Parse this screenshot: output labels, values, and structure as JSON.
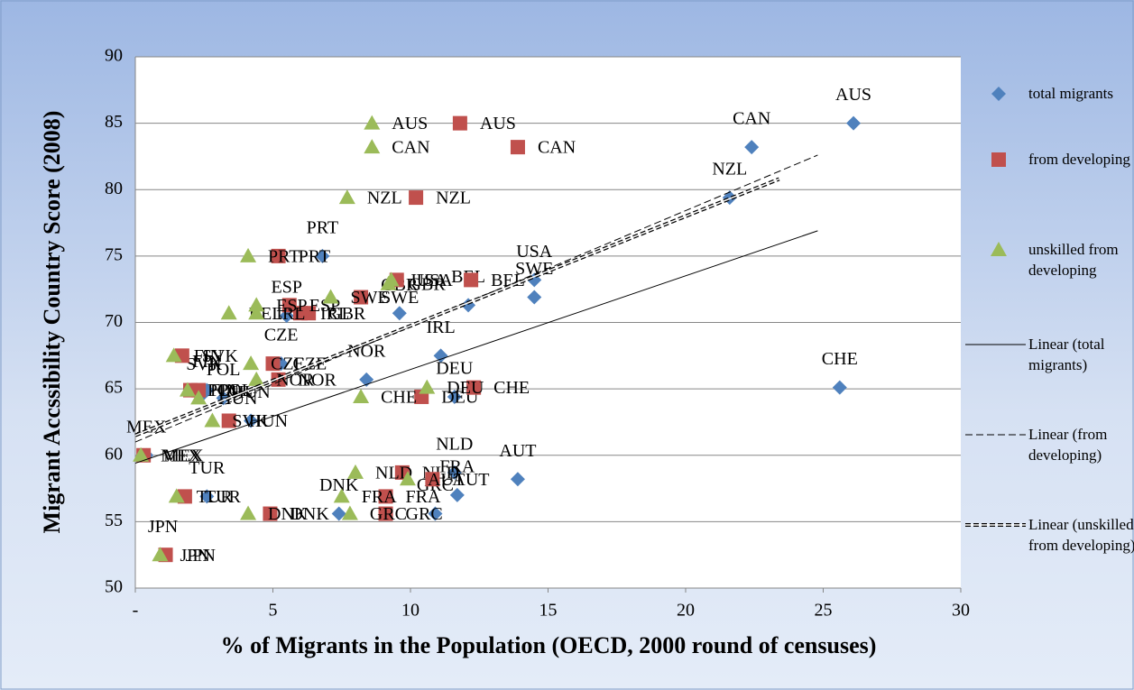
{
  "chart_data": {
    "type": "scatter",
    "xlabel": "% of Migrants in the Population (OECD, 2000 round of censuses)",
    "ylabel": "Migrant Accssibility Country Score (2008)",
    "xlim": [
      0,
      30
    ],
    "ylim": [
      50,
      90
    ],
    "xticks": [
      {
        "value": 0,
        "label": "-"
      },
      5,
      10,
      15,
      20,
      25,
      30
    ],
    "yticks": [
      50,
      55,
      60,
      65,
      70,
      75,
      80,
      85,
      90
    ],
    "grid": true,
    "legend": "right",
    "series": [
      {
        "name": "total migrants",
        "color": "#4f81bd",
        "marker": "diamond",
        "labels": [
          "AUS",
          "CAN",
          "NZL",
          "PRT",
          "USA",
          "SWE",
          "BEL",
          "GBR",
          "IRL",
          "NOR",
          "DEU",
          "CHE",
          "NLD",
          "AUT",
          "FRA",
          "GRC",
          "DNK",
          "ESP",
          "CZE",
          "FIN",
          "POL",
          "SVK",
          "HUN",
          "MEX",
          "TUR",
          "JPN"
        ],
        "x": [
          26.1,
          22.4,
          21.6,
          6.8,
          14.5,
          14.5,
          12.1,
          9.6,
          11.1,
          8.4,
          11.6,
          25.6,
          11.6,
          13.9,
          11.7,
          10.9,
          7.4,
          5.5,
          5.3,
          2.6,
          3.2,
          2.5,
          4.2,
          0.4,
          2.6,
          1.0
        ],
        "values": [
          85,
          83.2,
          79.4,
          75,
          73.2,
          71.9,
          71.3,
          70.7,
          67.5,
          65.7,
          64.4,
          65.1,
          58.7,
          58.2,
          57,
          55.6,
          55.6,
          70.5,
          66.9,
          64.9,
          64.3,
          64.7,
          62.6,
          60,
          56.9,
          52.5
        ]
      },
      {
        "name": "from developing",
        "color": "#c0504d",
        "marker": "square",
        "labels": [
          "AUS",
          "CAN",
          "NZL",
          "PRT",
          "USA",
          "SWE",
          "BEL",
          "GBR",
          "IRL",
          "NOR",
          "DEU",
          "CHE",
          "NLD",
          "AUT",
          "FRA",
          "GRC",
          "DNK",
          "ESP",
          "CZE",
          "FIN",
          "POL",
          "SVK",
          "HUN",
          "MEX",
          "TUR",
          "JPN"
        ],
        "x": [
          11.8,
          13.9,
          10.2,
          5.2,
          9.5,
          8.2,
          12.2,
          6.3,
          6.0,
          5.2,
          10.4,
          12.3,
          9.7,
          10.8,
          9.1,
          9.1,
          4.9,
          5.6,
          5.0,
          2.0,
          2.3,
          1.7,
          3.4,
          0.3,
          1.8,
          1.1
        ],
        "values": [
          85,
          83.2,
          79.4,
          75,
          73.2,
          71.9,
          73.2,
          70.7,
          70.7,
          65.7,
          64.4,
          65.1,
          58.7,
          58.2,
          56.9,
          55.6,
          55.6,
          71.3,
          66.9,
          64.9,
          64.9,
          67.5,
          62.6,
          60,
          56.9,
          52.5
        ]
      },
      {
        "name": "unskilled from developing",
        "color": "#9bbb59",
        "marker": "triangle",
        "labels": [
          "AUS",
          "CAN",
          "NZL",
          "PRT",
          "USA",
          "SWE",
          "BEL",
          "GBR",
          "IRL",
          "NOR",
          "DEU",
          "CHE",
          "NLD",
          "AUT",
          "FRA",
          "GRC",
          "DNK",
          "ESP",
          "CZE",
          "FIN",
          "POL",
          "SVK",
          "HUN",
          "MEX",
          "TUR",
          "JPN"
        ],
        "x": [
          8.6,
          8.6,
          7.7,
          4.1,
          9.3,
          7.1,
          3.4,
          9.2,
          4.4,
          4.4,
          10.6,
          8.2,
          8.0,
          9.9,
          7.5,
          7.8,
          4.1,
          4.4,
          4.2,
          1.4,
          1.9,
          2.8,
          2.3,
          0.2,
          1.5,
          0.9
        ],
        "values": [
          85,
          83.2,
          79.4,
          75,
          73.2,
          71.9,
          70.7,
          72.9,
          70.7,
          65.7,
          65.1,
          64.4,
          58.7,
          58.2,
          56.9,
          55.6,
          55.6,
          71.3,
          66.9,
          67.5,
          64.9,
          62.6,
          64.3,
          60,
          56.9,
          52.5
        ]
      }
    ],
    "trendlines": [
      {
        "name": "Linear (total migrants)",
        "style": "solid",
        "x": [
          0,
          24.8
        ],
        "values": [
          59.4,
          76.9
        ]
      },
      {
        "name": "Linear (from developing)",
        "style": "dashed",
        "x": [
          0,
          24.8
        ],
        "values": [
          61.0,
          82.6
        ]
      },
      {
        "name": "Linear (unskilled from developing)",
        "style": "double",
        "x": [
          0,
          23.4
        ],
        "values": [
          61.5,
          80.8
        ]
      }
    ]
  }
}
